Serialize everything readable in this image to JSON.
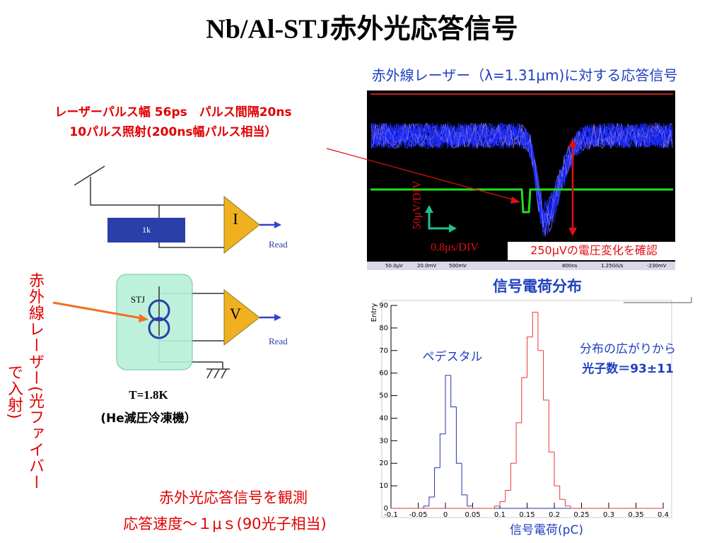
{
  "title": "Nb/Al-STJ赤外光応答信号",
  "laser_note": {
    "line1": "レーザーパルス幅 56ps　パルス間隔20ns",
    "line2": "10パルス照射(200ns幅パルス相当）"
  },
  "scope": {
    "caption": "赤外線レーザー（λ=1.31μm)に対する応答信号",
    "vdiv": "50μV/DIV",
    "hdiv": "0.8μs/DIV",
    "annotation": "250μVの電圧変化を確認",
    "status": [
      "50.0μV",
      "20.0mV",
      "500mV",
      "800ns",
      "1.25GS/s",
      "-230mV"
    ]
  },
  "circuit": {
    "resistor": "1k",
    "amp_i": "I",
    "amp_v": "V",
    "read_i": "Read",
    "read_v": "Read",
    "detector": "STJ",
    "temperature": "T=1.8K",
    "cryostat": "(He減圧冷凍機）",
    "fiber_label": [
      "赤外線レーザー(光ファイバー",
      "で入射)"
    ]
  },
  "chart_data": {
    "type": "histogram",
    "title": "信号電荷分布",
    "xlabel": "信号電荷(pC)",
    "ylabel": "Entry",
    "bins": [
      -0.1,
      -0.09,
      -0.08,
      -0.07,
      -0.06,
      -0.05,
      -0.04,
      -0.03,
      -0.02,
      -0.01,
      0,
      0.01,
      0.02,
      0.03,
      0.04,
      0.05,
      0.06,
      0.07,
      0.08,
      0.09,
      0.1,
      0.11,
      0.12,
      0.13,
      0.14,
      0.15,
      0.16,
      0.17,
      0.18,
      0.19,
      0.2,
      0.21,
      0.22,
      0.23,
      0.24,
      0.25,
      0.26,
      0.27,
      0.28,
      0.29,
      0.3,
      0.31,
      0.32,
      0.33,
      0.34,
      0.35,
      0.36,
      0.37,
      0.38,
      0.39,
      0.4
    ],
    "series": [
      {
        "color": "#2233aa",
        "values": [
          0,
          0,
          0,
          0,
          0,
          0,
          1,
          5,
          18,
          33,
          59,
          45,
          20,
          6,
          1,
          0,
          0,
          0,
          0,
          0,
          0,
          0,
          0,
          0,
          0,
          0,
          0,
          0,
          0,
          0,
          0,
          0,
          0,
          0,
          0,
          0,
          0,
          0,
          0,
          0,
          0,
          0,
          0,
          0,
          0,
          0,
          0,
          0,
          0,
          0
        ]
      },
      {
        "color": "#ee3333",
        "values": [
          0,
          0,
          0,
          0,
          0,
          0,
          0,
          0,
          0,
          0,
          0,
          0,
          0,
          0,
          0,
          0,
          0,
          0,
          0,
          1,
          3,
          8,
          20,
          38,
          58,
          76,
          87,
          70,
          48,
          25,
          10,
          4,
          1,
          0,
          0,
          0,
          0,
          0,
          0,
          0,
          0,
          0,
          0,
          0,
          0,
          0,
          0,
          0,
          0,
          0
        ]
      }
    ],
    "xlim": [
      -0.1,
      0.4
    ],
    "ylim": [
      0,
      90
    ],
    "xticks": [
      -0.1,
      -0.05,
      0,
      0.05,
      0.1,
      0.15,
      0.2,
      0.25,
      0.3,
      0.35,
      0.4
    ],
    "yticks": [
      0,
      10,
      20,
      30,
      40,
      50,
      60,
      70,
      80,
      90
    ],
    "annotations": [
      "ペデスタル",
      "分布の広がりから",
      "光子数＝93±11"
    ]
  },
  "conclusion": [
    "赤外光応答信号を観測",
    "応答速度～１μｓ(90光子相当)"
  ]
}
